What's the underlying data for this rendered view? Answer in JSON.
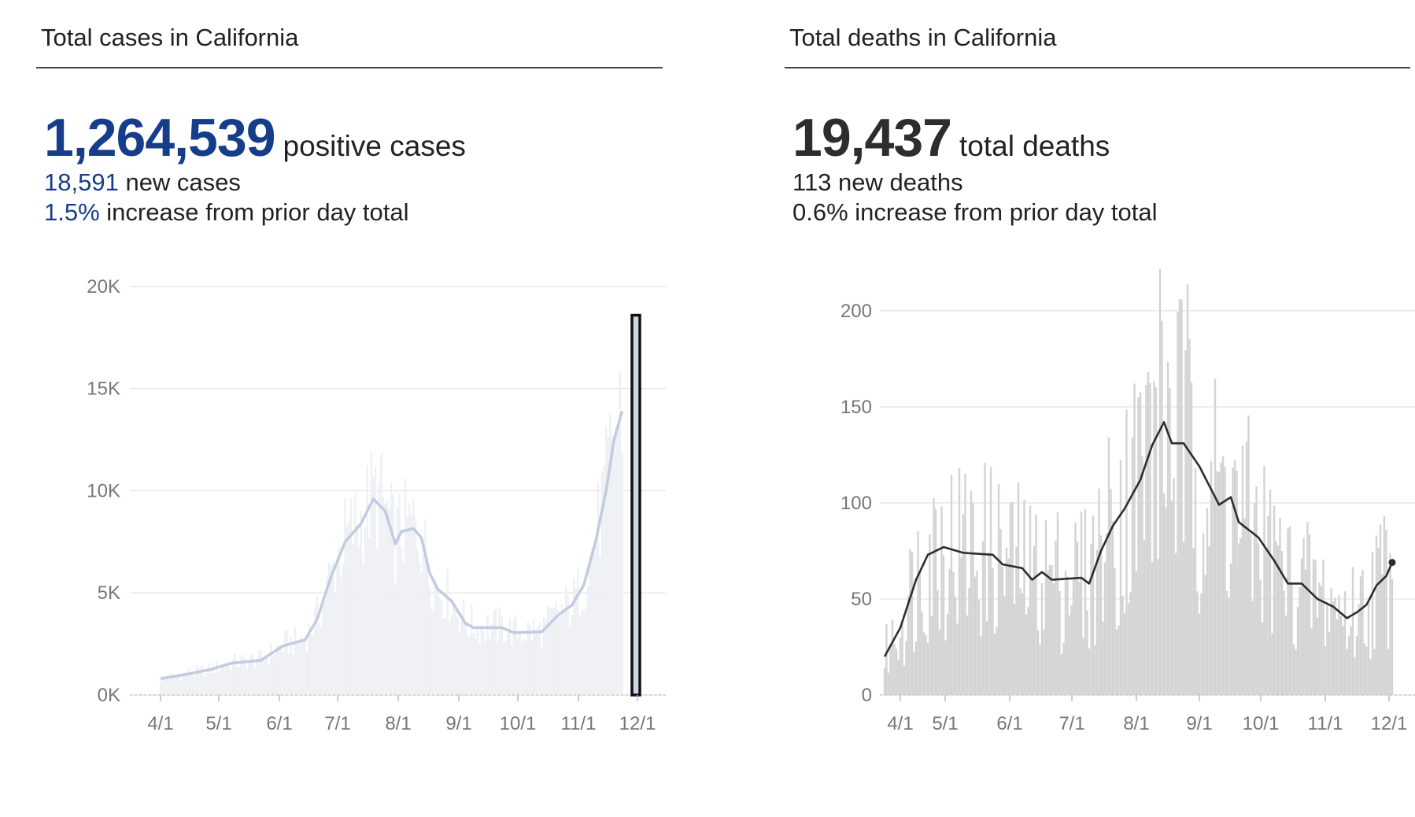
{
  "cases": {
    "title": "Total cases in California",
    "total": "1,264,539",
    "total_label": "positive cases",
    "new_value": "18,591",
    "new_label": "new cases",
    "pct_value": "1.5%",
    "pct_label": "increase from prior day total",
    "accent": "#153d8a"
  },
  "deaths": {
    "title": "Total deaths in California",
    "total": "19,437",
    "total_label": "total deaths",
    "new_value": "113",
    "new_label": "new deaths",
    "pct_value": "0.6%",
    "pct_label": "increase from prior day total",
    "accent": "#2d2d2d"
  },
  "chart_data": [
    {
      "type": "bar",
      "subtype": "daily bars with 7-day average line",
      "x_tick_labels": [
        "4/1",
        "5/1",
        "6/1",
        "7/1",
        "8/1",
        "9/1",
        "10/1",
        "11/1",
        "12/1"
      ],
      "y_tick_labels": [
        "0K",
        "5K",
        "10K",
        "15K",
        "20K"
      ],
      "y_ticks": [
        0,
        5000,
        10000,
        15000,
        20000
      ],
      "ylim": [
        0,
        21000
      ],
      "grid": true,
      "bar_color": "#eef0f4",
      "line_color": "#c3cbe0",
      "highlight_color": "#111111",
      "highlight_label": "12/1",
      "highlight_value": 18591,
      "average_keypoints": [
        {
          "day": 0,
          "value": 800
        },
        {
          "day": 12,
          "value": 1000
        },
        {
          "day": 25,
          "value": 1250
        },
        {
          "day": 35,
          "value": 1550
        },
        {
          "day": 50,
          "value": 1700
        },
        {
          "day": 61,
          "value": 2400
        },
        {
          "day": 72,
          "value": 2700
        },
        {
          "day": 78,
          "value": 3700
        },
        {
          "day": 85,
          "value": 5800
        },
        {
          "day": 92,
          "value": 7500
        },
        {
          "day": 100,
          "value": 8400
        },
        {
          "day": 106,
          "value": 9600
        },
        {
          "day": 112,
          "value": 9000
        },
        {
          "day": 117,
          "value": 7400
        },
        {
          "day": 120,
          "value": 8000
        },
        {
          "day": 126,
          "value": 8150
        },
        {
          "day": 130,
          "value": 7700
        },
        {
          "day": 134,
          "value": 6000
        },
        {
          "day": 138,
          "value": 5200
        },
        {
          "day": 145,
          "value": 4600
        },
        {
          "day": 152,
          "value": 3500
        },
        {
          "day": 156,
          "value": 3300
        },
        {
          "day": 170,
          "value": 3300
        },
        {
          "day": 176,
          "value": 3050
        },
        {
          "day": 190,
          "value": 3100
        },
        {
          "day": 198,
          "value": 3900
        },
        {
          "day": 205,
          "value": 4400
        },
        {
          "day": 211,
          "value": 5400
        },
        {
          "day": 217,
          "value": 7600
        },
        {
          "day": 222,
          "value": 10000
        },
        {
          "day": 226,
          "value": 12500
        },
        {
          "day": 230,
          "value": 13900
        }
      ]
    },
    {
      "type": "bar",
      "subtype": "daily bars with 7-day average line",
      "x_tick_labels": [
        "4/1",
        "5/1",
        "6/1",
        "7/1",
        "8/1",
        "9/1",
        "10/1",
        "11/1",
        "12/1"
      ],
      "y_tick_labels": [
        "0",
        "50",
        "100",
        "150",
        "200"
      ],
      "y_ticks": [
        0,
        50,
        100,
        150,
        200
      ],
      "ylim": [
        0,
        220
      ],
      "grid": true,
      "bar_color": "#d3d3d3",
      "line_color": "#2d2d2d",
      "average_keypoints": [
        {
          "day": 0,
          "value": 20
        },
        {
          "day": 8,
          "value": 35
        },
        {
          "day": 16,
          "value": 60
        },
        {
          "day": 22,
          "value": 73
        },
        {
          "day": 30,
          "value": 77
        },
        {
          "day": 40,
          "value": 74
        },
        {
          "day": 55,
          "value": 73
        },
        {
          "day": 60,
          "value": 68
        },
        {
          "day": 70,
          "value": 66
        },
        {
          "day": 75,
          "value": 60
        },
        {
          "day": 80,
          "value": 64
        },
        {
          "day": 85,
          "value": 60
        },
        {
          "day": 100,
          "value": 61
        },
        {
          "day": 104,
          "value": 58
        },
        {
          "day": 110,
          "value": 75
        },
        {
          "day": 116,
          "value": 88
        },
        {
          "day": 122,
          "value": 97
        },
        {
          "day": 130,
          "value": 112
        },
        {
          "day": 136,
          "value": 130
        },
        {
          "day": 142,
          "value": 142
        },
        {
          "day": 146,
          "value": 131
        },
        {
          "day": 152,
          "value": 131
        },
        {
          "day": 160,
          "value": 119
        },
        {
          "day": 170,
          "value": 99
        },
        {
          "day": 176,
          "value": 103
        },
        {
          "day": 180,
          "value": 90
        },
        {
          "day": 190,
          "value": 82
        },
        {
          "day": 198,
          "value": 70
        },
        {
          "day": 205,
          "value": 58
        },
        {
          "day": 212,
          "value": 58
        },
        {
          "day": 220,
          "value": 50
        },
        {
          "day": 228,
          "value": 46
        },
        {
          "day": 235,
          "value": 40
        },
        {
          "day": 240,
          "value": 43
        },
        {
          "day": 245,
          "value": 47
        },
        {
          "day": 250,
          "value": 57
        },
        {
          "day": 255,
          "value": 62
        },
        {
          "day": 258,
          "value": 69
        }
      ]
    }
  ]
}
